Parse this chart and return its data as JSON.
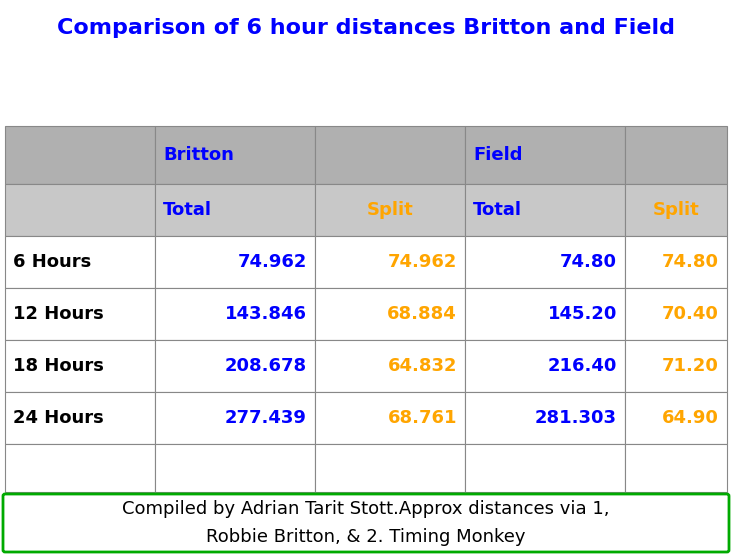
{
  "title": "Comparison of 6 hour distances Britton and Field",
  "title_color": "#0000FF",
  "title_fontsize": 16,
  "background_color": "#FFFFFF",
  "header1_bg": "#B0B0B0",
  "header2_bg": "#C8C8C8",
  "blue_color": "#0000FF",
  "orange_color": "#FFA500",
  "black_color": "#000000",
  "green_border": "#00AA00",
  "rows": [
    {
      "label": "6 Hours",
      "b_total": "74.962",
      "b_split": "74.962",
      "f_total": "74.80",
      "f_split": "74.80"
    },
    {
      "label": "12 Hours",
      "b_total": "143.846",
      "b_split": "68.884",
      "f_total": "145.20",
      "f_split": "70.40"
    },
    {
      "label": "18 Hours",
      "b_total": "208.678",
      "b_split": "64.832",
      "f_total": "216.40",
      "f_split": "71.20"
    },
    {
      "label": "24 Hours",
      "b_total": "277.439",
      "b_split": "68.761",
      "f_total": "281.303",
      "f_split": "64.90"
    }
  ],
  "footer_line1": "Compiled by Adrian Tarit Stott.Approx distances via 1,",
  "footer_line2": "Robbie Britton, & 2. Timing Monkey",
  "footer_fontsize": 12,
  "data_fontsize": 12,
  "header_fontsize": 12,
  "label_fontsize": 12
}
